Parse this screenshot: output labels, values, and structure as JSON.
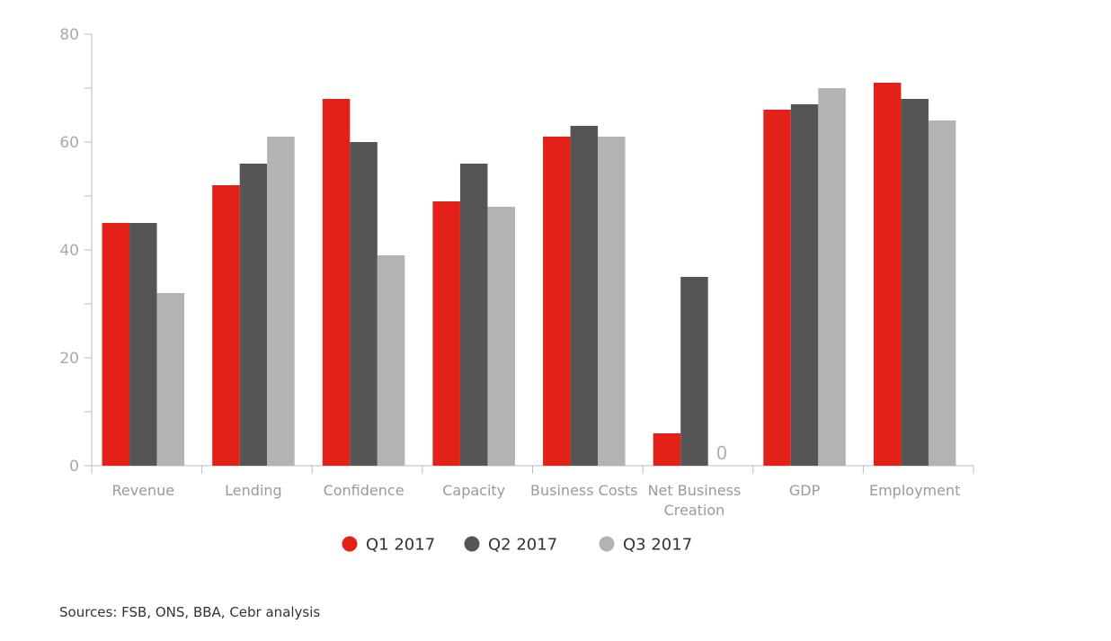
{
  "chart_data": {
    "type": "bar",
    "categories": [
      "Revenue",
      "Lending",
      "Confidence",
      "Capacity",
      "Business Costs",
      "Net Business Creation",
      "GDP",
      "Employment"
    ],
    "category_lines": [
      [
        "Revenue"
      ],
      [
        "Lending"
      ],
      [
        "Confidence"
      ],
      [
        "Capacity"
      ],
      [
        "Business Costs"
      ],
      [
        "Net Business",
        "Creation"
      ],
      [
        "GDP"
      ],
      [
        "Employment"
      ]
    ],
    "series": [
      {
        "name": "Q1 2017",
        "color": "#e32118",
        "values": [
          45,
          52,
          68,
          49,
          61,
          6,
          66,
          71
        ]
      },
      {
        "name": "Q2 2017",
        "color": "#555555",
        "values": [
          45,
          56,
          60,
          56,
          63,
          35,
          67,
          68
        ]
      },
      {
        "name": "Q3 2017",
        "color": "#b3b3b3",
        "values": [
          32,
          61,
          39,
          48,
          61,
          0,
          70,
          64
        ]
      }
    ],
    "ylim": [
      0,
      80
    ],
    "yticks": [
      0,
      20,
      40,
      60,
      80
    ],
    "annotations": [
      {
        "category": "Net Business Creation",
        "series": "Q3 2017",
        "text": "0"
      }
    ],
    "legend_position": "bottom",
    "grid": false
  },
  "source_note": "Sources: FSB, ONS, BBA, Cebr analysis"
}
